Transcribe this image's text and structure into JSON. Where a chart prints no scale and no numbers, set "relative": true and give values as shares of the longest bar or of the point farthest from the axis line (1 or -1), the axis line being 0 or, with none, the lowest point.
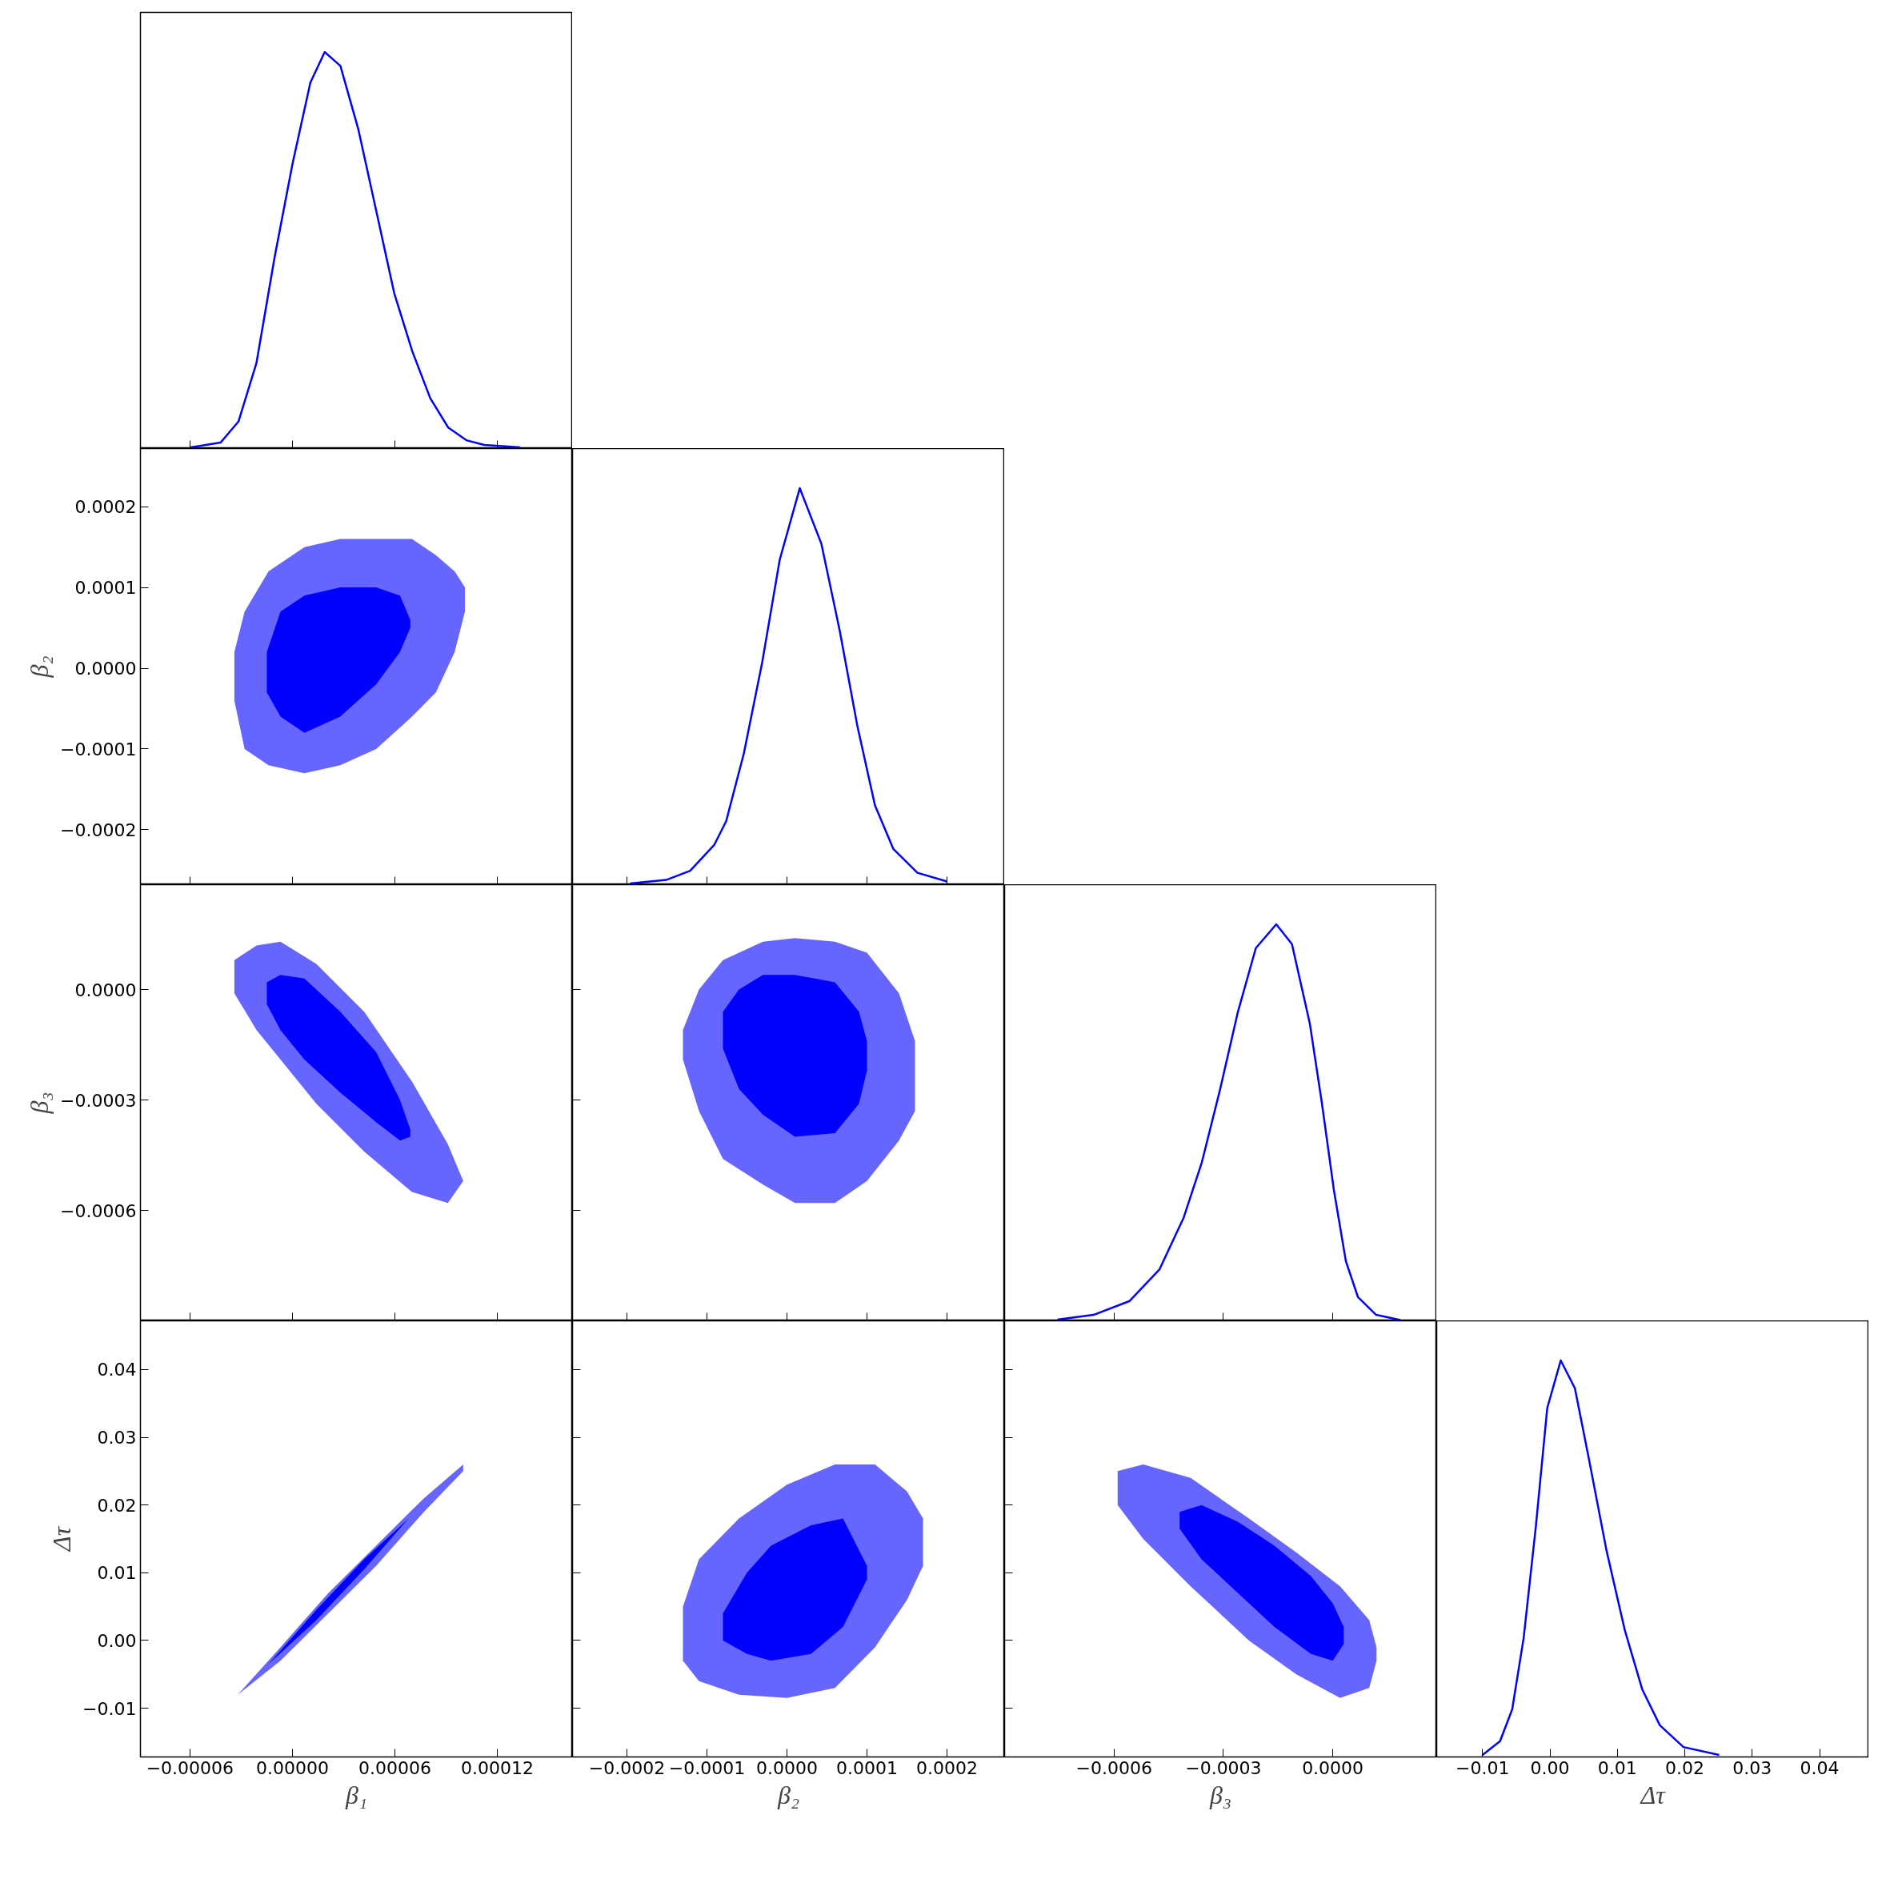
{
  "chart_data": [
    {
      "type": "line",
      "relative": true,
      "color": "#0000ff",
      "tick_labels": false,
      "xlim": [
        -8.9e-05,
        0.000164
      ],
      "xticks": [
        {
          "value": -6e-05,
          "label": null
        },
        {
          "value": 0,
          "label": null
        },
        {
          "value": 6e-05,
          "label": null
        },
        {
          "value": 0.00012,
          "label": null
        }
      ],
      "x": [
        -5.96e-05,
        -4.21e-05,
        -3.16e-05,
        -2.11e-05,
        -1.05e-05,
        0,
        1.05e-05,
        1.89e-05,
        2.81e-05,
        3.86e-05,
        4.91e-05,
        5.96e-05,
        7.02e-05,
        8.07e-05,
        9.12e-05,
        0.0001018,
        0.0001123,
        0.0001333
      ],
      "values": [
        0.003,
        0.015,
        0.068,
        0.215,
        0.481,
        0.717,
        0.923,
        1,
        0.965,
        0.805,
        0.599,
        0.392,
        0.245,
        0.127,
        0.053,
        0.021,
        0.009,
        0.003
      ]
    },
    {
      "type": "area",
      "ylabel": "β₂",
      "tick_labels": "y",
      "xlim": [
        -8.9e-05,
        0.000164
      ],
      "xticks": [
        {
          "value": -6e-05,
          "label": null
        },
        {
          "value": 0,
          "label": null
        },
        {
          "value": 6e-05,
          "label": null
        },
        {
          "value": 0.00012,
          "label": null
        }
      ],
      "ylim": [
        -0.000268,
        0.000272
      ],
      "yticks": [
        {
          "value": -0.0002,
          "label": "−0.0002"
        },
        {
          "value": -0.0001,
          "label": "−0.0001"
        },
        {
          "value": 0,
          "label": "0.0000"
        },
        {
          "value": 0.0001,
          "label": "0.0001"
        },
        {
          "value": 0.0002,
          "label": "0.0002"
        }
      ],
      "series": [
        {
          "color": "#6666ff",
          "x": [
            -3.4e-05,
            -2.8e-05,
            -1.4e-05,
            7e-06,
            2.8e-05,
            4.9e-05,
            7e-05,
            8.4e-05,
            9.5e-05,
            0.000101,
            0.000101,
            9.5e-05,
            8.4e-05,
            7e-05,
            4.9e-05,
            2.8e-05,
            7e-06,
            -1.4e-05,
            -2.8e-05,
            -3.4e-05
          ],
          "values": [
            2e-05,
            7e-05,
            0.00012,
            0.00015,
            0.00016,
            0.00016,
            0.00016,
            0.00014,
            0.00012,
            0.0001,
            7e-05,
            2e-05,
            -3e-05,
            -6e-05,
            -0.0001,
            -0.00012,
            -0.00013,
            -0.00012,
            -0.0001,
            -4e-05
          ]
        },
        {
          "color": "#0000ff",
          "x": [
            -1.5e-05,
            -7e-06,
            7e-06,
            2.8e-05,
            4.9e-05,
            6.3e-05,
            6.9e-05,
            6.9e-05,
            6.3e-05,
            4.9e-05,
            2.8e-05,
            7e-06,
            -7e-06,
            -1.5e-05
          ],
          "values": [
            2e-05,
            7e-05,
            9e-05,
            0.0001,
            0.0001,
            9e-05,
            6e-05,
            5e-05,
            2e-05,
            -2e-05,
            -6e-05,
            -8e-05,
            -6e-05,
            -3e-05
          ]
        }
      ]
    },
    {
      "type": "line",
      "relative": true,
      "color": "#0000ff",
      "tick_labels": false,
      "xlim": [
        -0.000268,
        0.000272
      ],
      "xticks": [
        {
          "value": -0.0002,
          "label": null
        },
        {
          "value": -0.0001,
          "label": null
        },
        {
          "value": 0,
          "label": null
        },
        {
          "value": 0.0001,
          "label": null
        },
        {
          "value": 0.0002,
          "label": null
        }
      ],
      "x": [
        -0.000196,
        -0.000151,
        -0.000121,
        -9.1e-05,
        -7.6e-05,
        -5.4e-05,
        -3.1e-05,
        -9e-06,
        1.6e-05,
        4.3e-05,
        6.6e-05,
        8.8e-05,
        0.00011,
        0.000133,
        0.000163,
        0.0002
      ],
      "values": [
        0.003,
        0.012,
        0.035,
        0.1,
        0.16,
        0.33,
        0.56,
        0.82,
        1,
        0.86,
        0.64,
        0.4,
        0.2,
        0.09,
        0.03,
        0.008
      ]
    },
    {
      "type": "area",
      "ylabel": "β₃",
      "tick_labels": "y",
      "xlim": [
        -8.9e-05,
        0.000164
      ],
      "xticks": [
        {
          "value": -6e-05,
          "label": null
        },
        {
          "value": 0,
          "label": null
        },
        {
          "value": 6e-05,
          "label": null
        },
        {
          "value": 0.00012,
          "label": null
        }
      ],
      "ylim": [
        -0.0009,
        0.000285
      ],
      "yticks": [
        {
          "value": -0.0006,
          "label": "−0.0006"
        },
        {
          "value": -0.0003,
          "label": "−0.0003"
        },
        {
          "value": 0,
          "label": "0.0000"
        }
      ],
      "series": [
        {
          "color": "#6666ff",
          "x": [
            -3.4e-05,
            -2.1e-05,
            -7e-06,
            1.4e-05,
            4.2e-05,
            7e-05,
            9.1e-05,
            0.0001,
            9.1e-05,
            7e-05,
            4.2e-05,
            1.4e-05,
            -7e-06,
            -2.1e-05,
            -3.4e-05
          ],
          "values": [
            8e-05,
            0.00012,
            0.00013,
            7e-05,
            -6e-05,
            -0.00025,
            -0.00042,
            -0.00052,
            -0.00058,
            -0.00055,
            -0.00044,
            -0.00031,
            -0.00019,
            -0.00011,
            -1e-05
          ]
        },
        {
          "color": "#0000ff",
          "x": [
            -1.5e-05,
            -7e-06,
            7e-06,
            2.8e-05,
            4.9e-05,
            6.3e-05,
            6.9e-05,
            6.9e-05,
            6.3e-05,
            4.9e-05,
            2.8e-05,
            7e-06,
            -7e-06,
            -1.5e-05
          ],
          "values": [
            2e-05,
            4e-05,
            3e-05,
            -6e-05,
            -0.00017,
            -0.0003,
            -0.00038,
            -0.0004,
            -0.00041,
            -0.00036,
            -0.00028,
            -0.00019,
            -0.00011,
            -4e-05
          ]
        }
      ]
    },
    {
      "type": "area",
      "tick_labels": false,
      "xlim": [
        -0.000268,
        0.000272
      ],
      "xticks": [
        {
          "value": -0.0002,
          "label": null
        },
        {
          "value": -0.0001,
          "label": null
        },
        {
          "value": 0,
          "label": null
        },
        {
          "value": 0.0001,
          "label": null
        },
        {
          "value": 0.0002,
          "label": null
        }
      ],
      "ylim": [
        -0.0009,
        0.000285
      ],
      "yticks": [
        {
          "value": -0.0006,
          "label": null
        },
        {
          "value": -0.0003,
          "label": null
        },
        {
          "value": 0,
          "label": null
        }
      ],
      "series": [
        {
          "color": "#6666ff",
          "x": [
            -0.00013,
            -0.00011,
            -8e-05,
            -3e-05,
            1e-05,
            6e-05,
            0.0001,
            0.00014,
            0.00016,
            0.00016,
            0.00014,
            0.0001,
            6e-05,
            1e-05,
            -3e-05,
            -8e-05,
            -0.00011,
            -0.00013
          ],
          "values": [
            -0.00011,
            0,
            8e-05,
            0.00013,
            0.00014,
            0.00013,
            0.0001,
            -1e-05,
            -0.00014,
            -0.00033,
            -0.00041,
            -0.00052,
            -0.00058,
            -0.00058,
            -0.00053,
            -0.00046,
            -0.00033,
            -0.00019
          ]
        },
        {
          "color": "#0000ff",
          "x": [
            -8e-05,
            -6e-05,
            -3e-05,
            1e-05,
            6e-05,
            9e-05,
            0.0001,
            0.0001,
            9e-05,
            6e-05,
            1e-05,
            -3e-05,
            -6e-05,
            -8e-05
          ],
          "values": [
            -6e-05,
            0,
            4e-05,
            4e-05,
            2e-05,
            -6e-05,
            -0.00014,
            -0.00022,
            -0.00031,
            -0.00039,
            -0.0004,
            -0.00034,
            -0.00027,
            -0.00016
          ]
        }
      ]
    },
    {
      "type": "line",
      "relative": true,
      "color": "#0000ff",
      "tick_labels": false,
      "xlim": [
        -0.0009,
        0.000285
      ],
      "xticks": [
        {
          "value": -0.0006,
          "label": null
        },
        {
          "value": -0.0003,
          "label": null
        },
        {
          "value": 0,
          "label": null
        }
      ],
      "x": [
        -0.000755,
        -0.000656,
        -0.000557,
        -0.000475,
        -0.000409,
        -0.000359,
        -0.00031,
        -0.00026,
        -0.000211,
        -0.000155,
        -0.000112,
        -6.3e-05,
        -3e-05,
        3e-06,
        3.6e-05,
        6.9e-05,
        0.000119,
        0.000185
      ],
      "values": [
        0.003,
        0.015,
        0.05,
        0.13,
        0.26,
        0.4,
        0.58,
        0.78,
        0.94,
        1,
        0.95,
        0.75,
        0.55,
        0.33,
        0.15,
        0.06,
        0.015,
        0.002
      ]
    },
    {
      "type": "area",
      "xlabel": "β₁",
      "ylabel": "Δτ",
      "xlim": [
        -8.9e-05,
        0.000164
      ],
      "xticks": [
        {
          "value": -6e-05,
          "label": "−0.00006"
        },
        {
          "value": 0,
          "label": "0.00000"
        },
        {
          "value": 6e-05,
          "label": "0.00006"
        },
        {
          "value": 0.00012,
          "label": "0.00012"
        }
      ],
      "ylim": [
        -0.0172,
        0.0472
      ],
      "yticks": [
        {
          "value": -0.01,
          "label": "−0.01"
        },
        {
          "value": 0,
          "label": "0.00"
        },
        {
          "value": 0.01,
          "label": "0.01"
        },
        {
          "value": 0.02,
          "label": "0.02"
        },
        {
          "value": 0.03,
          "label": "0.03"
        },
        {
          "value": 0.04,
          "label": "0.04"
        }
      ],
      "series": [
        {
          "color": "#6666ff",
          "x": [
            -3.2e-05,
            -7e-06,
            2.1e-05,
            4.9e-05,
            7.7e-05,
            0.0001,
            0.0001,
            7.7e-05,
            4.9e-05,
            2.1e-05,
            -7e-06
          ],
          "values": [
            -0.008,
            -0.001,
            0.007,
            0.014,
            0.021,
            0.026,
            0.025,
            0.019,
            0.011,
            0.004,
            -0.003
          ]
        },
        {
          "color": "#0000ff",
          "x": [
            -1.4e-05,
            1.4e-05,
            4.2e-05,
            6.8e-05,
            4.2e-05,
            1.4e-05
          ],
          "values": [
            -0.0035,
            0.0045,
            0.012,
            0.018,
            0.0105,
            0.003
          ]
        }
      ]
    },
    {
      "type": "area",
      "xlabel": "β₂",
      "tick_labels": "x",
      "xlim": [
        -0.000268,
        0.000272
      ],
      "xticks": [
        {
          "value": -0.0002,
          "label": "−0.0002"
        },
        {
          "value": -0.0001,
          "label": "−0.0001"
        },
        {
          "value": 0,
          "label": "0.0000"
        },
        {
          "value": 0.0001,
          "label": "0.0001"
        },
        {
          "value": 0.0002,
          "label": "0.0002"
        }
      ],
      "ylim": [
        -0.0172,
        0.0472
      ],
      "yticks": [
        {
          "value": -0.01,
          "label": null
        },
        {
          "value": 0,
          "label": null
        },
        {
          "value": 0.01,
          "label": null
        },
        {
          "value": 0.02,
          "label": null
        },
        {
          "value": 0.03,
          "label": null
        },
        {
          "value": 0.04,
          "label": null
        }
      ],
      "series": [
        {
          "color": "#6666ff",
          "x": [
            -0.00013,
            -0.00011,
            -6e-05,
            0,
            6e-05,
            0.00011,
            0.00015,
            0.00017,
            0.00017,
            0.00015,
            0.00011,
            6e-05,
            0,
            -6e-05,
            -0.00011,
            -0.00013
          ],
          "values": [
            0.005,
            0.012,
            0.018,
            0.023,
            0.026,
            0.026,
            0.022,
            0.018,
            0.011,
            0.006,
            -0.001,
            -0.007,
            -0.0085,
            -0.008,
            -0.006,
            -0.003
          ]
        },
        {
          "color": "#0000ff",
          "x": [
            -8e-05,
            -5e-05,
            -2e-05,
            3e-05,
            7e-05,
            0.0001,
            0.0001,
            7e-05,
            3e-05,
            -2e-05,
            -5e-05,
            -8e-05
          ],
          "values": [
            0.004,
            0.01,
            0.014,
            0.017,
            0.018,
            0.011,
            0.009,
            0.002,
            -0.002,
            -0.003,
            -0.002,
            0
          ]
        }
      ]
    },
    {
      "type": "area",
      "xlabel": "β₃",
      "tick_labels": "x",
      "xlim": [
        -0.0009,
        0.000285
      ],
      "xticks": [
        {
          "value": -0.0006,
          "label": "−0.0006"
        },
        {
          "value": -0.0003,
          "label": "−0.0003"
        },
        {
          "value": 0,
          "label": "0.0000"
        }
      ],
      "ylim": [
        -0.0172,
        0.0472
      ],
      "yticks": [
        {
          "value": -0.01,
          "label": null
        },
        {
          "value": 0,
          "label": null
        },
        {
          "value": 0.01,
          "label": null
        },
        {
          "value": 0.02,
          "label": null
        },
        {
          "value": 0.03,
          "label": null
        },
        {
          "value": 0.04,
          "label": null
        }
      ],
      "series": [
        {
          "color": "#6666ff",
          "x": [
            -0.00059,
            -0.00052,
            -0.00039,
            -0.00023,
            -0.0001,
            2e-05,
            0.0001,
            0.00012,
            0.00012,
            0.0001,
            2e-05,
            -0.0001,
            -0.00023,
            -0.00039,
            -0.00052,
            -0.00059
          ],
          "values": [
            0.025,
            0.026,
            0.024,
            0.018,
            0.013,
            0.008,
            0.003,
            -0.001,
            -0.003,
            -0.007,
            -0.0085,
            -0.005,
            0,
            0.008,
            0.015,
            0.02
          ]
        },
        {
          "color": "#0000ff",
          "x": [
            -0.00042,
            -0.00036,
            -0.00026,
            -0.00016,
            -6e-05,
            0,
            3e-05,
            3e-05,
            0,
            -6e-05,
            -0.00016,
            -0.00026,
            -0.00036,
            -0.00042
          ],
          "values": [
            0.019,
            0.02,
            0.0175,
            0.014,
            0.0095,
            0.0055,
            0.002,
            -0.0005,
            -0.003,
            -0.002,
            0.002,
            0.007,
            0.012,
            0.0165
          ]
        }
      ]
    },
    {
      "type": "line",
      "relative": true,
      "color": "#0000ff",
      "xlabel": "Δτ",
      "tick_labels": "x",
      "xlim": [
        -0.0168,
        0.0473
      ],
      "xticks": [
        {
          "value": -0.01,
          "label": "−0.01"
        },
        {
          "value": 0,
          "label": "0.00"
        },
        {
          "value": 0.01,
          "label": "0.01"
        },
        {
          "value": 0.02,
          "label": "0.02"
        },
        {
          "value": 0.03,
          "label": "0.03"
        },
        {
          "value": 0.04,
          "label": "0.04"
        }
      ],
      "x": [
        -0.01,
        -0.0074,
        -0.0056,
        -0.0039,
        -0.0021,
        -0.0004,
        0.0016,
        0.0037,
        0.0058,
        0.0084,
        0.0111,
        0.0137,
        0.0163,
        0.0198,
        0.0251
      ],
      "values": [
        0.005,
        0.04,
        0.12,
        0.3,
        0.58,
        0.88,
        1,
        0.93,
        0.75,
        0.52,
        0.32,
        0.17,
        0.08,
        0.025,
        0.005
      ]
    }
  ]
}
